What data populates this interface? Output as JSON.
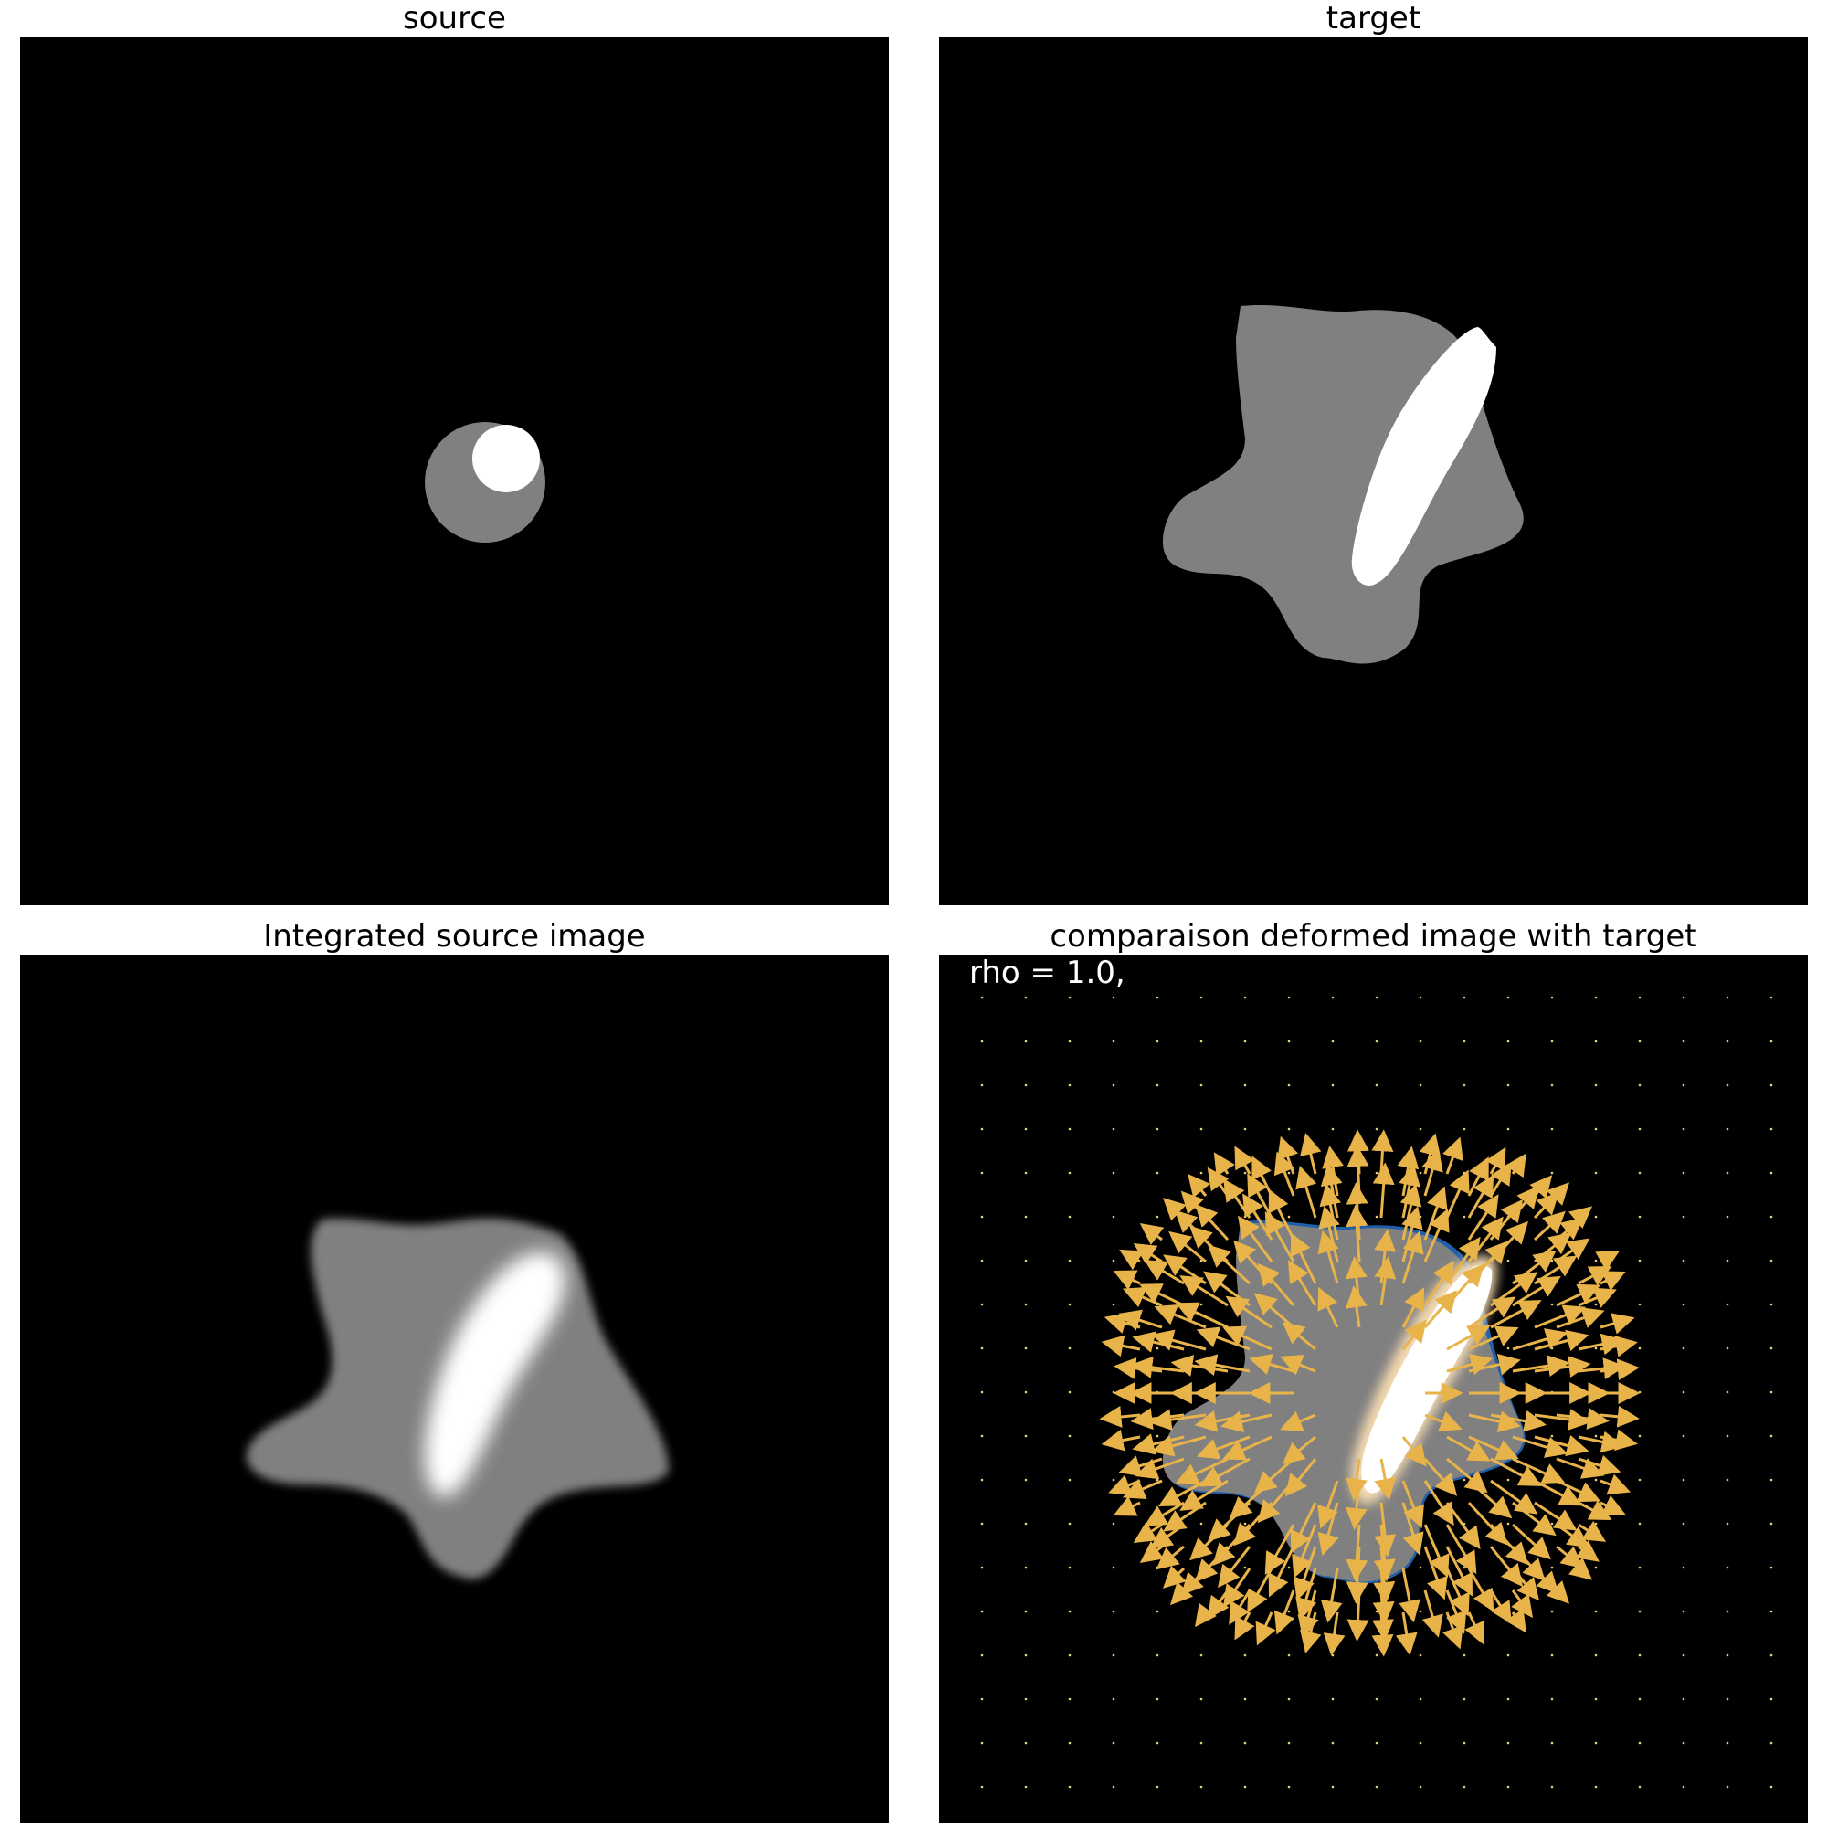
{
  "panels": [
    {
      "id": "source",
      "title": "source"
    },
    {
      "id": "target",
      "title": "target"
    },
    {
      "id": "integrated",
      "title": "Integrated source image"
    },
    {
      "id": "comparison",
      "title": "comparaison deformed image with target",
      "annotation": "rho = 1.0,"
    }
  ],
  "colors": {
    "background": "#000000",
    "shape_gray": "#808080",
    "highlight": "#ffffff",
    "vector_arrows": "#e8b44a",
    "edge_blue": "#1f5fa8"
  }
}
